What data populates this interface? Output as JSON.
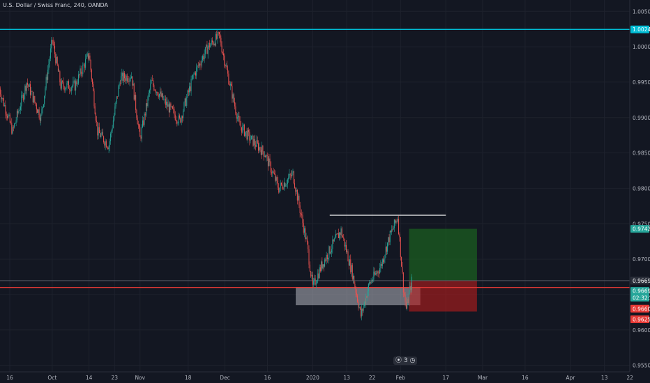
{
  "header": {
    "symbol_title": "U.S. Dollar / Swiss Franc, 240, OANDA"
  },
  "chart_data": {
    "type": "candlestick",
    "title": "U.S. Dollar / Swiss Franc, 240, OANDA",
    "ylim": [
      0.9525,
      1.0066
    ],
    "y_ticks": [
      "1.00500",
      "1.00000",
      "0.99500",
      "0.99000",
      "0.98500",
      "0.98000",
      "0.97500",
      "0.97000",
      "0.96500",
      "0.96000",
      "0.95500"
    ],
    "x_ticks": [
      "16",
      "Oct",
      "14",
      "23",
      "Nov",
      "18",
      "Dec",
      "16",
      "2020",
      "13",
      "22",
      "Feb",
      "17",
      "Mar",
      "16",
      "Apr",
      "13",
      "22"
    ],
    "price_path": [
      {
        "x": "Sep 12",
        "y": 0.9945
      },
      {
        "x": "Sep 17",
        "y": 0.988
      },
      {
        "x": "Sep 22",
        "y": 0.995
      },
      {
        "x": "Sep 27",
        "y": 0.99
      },
      {
        "x": "Oct 1",
        "y": 1.001
      },
      {
        "x": "Oct 4",
        "y": 0.9945
      },
      {
        "x": "Oct 9",
        "y": 0.9945
      },
      {
        "x": "Oct 14",
        "y": 0.999
      },
      {
        "x": "Oct 17",
        "y": 0.988
      },
      {
        "x": "Oct 21",
        "y": 0.986
      },
      {
        "x": "Oct 25",
        "y": 0.9955
      },
      {
        "x": "Oct 29",
        "y": 0.996
      },
      {
        "x": "Nov 1",
        "y": 0.987
      },
      {
        "x": "Nov 5",
        "y": 0.995
      },
      {
        "x": "Nov 10",
        "y": 0.992
      },
      {
        "x": "Nov 15",
        "y": 0.9895
      },
      {
        "x": "Nov 20",
        "y": 0.996
      },
      {
        "x": "Nov 25",
        "y": 1.0
      },
      {
        "x": "Nov 29",
        "y": 1.0015
      },
      {
        "x": "Dec 2",
        "y": 0.996
      },
      {
        "x": "Dec 6",
        "y": 0.989
      },
      {
        "x": "Dec 10",
        "y": 0.987
      },
      {
        "x": "Dec 15",
        "y": 0.985
      },
      {
        "x": "Dec 20",
        "y": 0.98
      },
      {
        "x": "Dec 25",
        "y": 0.982
      },
      {
        "x": "Dec 30",
        "y": 0.972
      },
      {
        "x": "Jan 1",
        "y": 0.966
      },
      {
        "x": "Jan 4",
        "y": 0.969
      },
      {
        "x": "Jan 8",
        "y": 0.972
      },
      {
        "x": "Jan 11",
        "y": 0.974
      },
      {
        "x": "Jan 15",
        "y": 0.968
      },
      {
        "x": "Jan 18",
        "y": 0.962
      },
      {
        "x": "Jan 21",
        "y": 0.9665
      },
      {
        "x": "Jan 25",
        "y": 0.969
      },
      {
        "x": "Jan 28",
        "y": 0.973
      },
      {
        "x": "Jan 31",
        "y": 0.976
      },
      {
        "x": "Feb 2",
        "y": 0.966
      },
      {
        "x": "Feb 3",
        "y": 0.963
      },
      {
        "x": "Feb 5",
        "y": 0.9669
      }
    ],
    "horizontal_lines": [
      {
        "price": 1.00245,
        "color": "#00bcd4"
      },
      {
        "price": 0.966,
        "color": "#e53935"
      },
      {
        "price": 0.96696,
        "color": "#5d606b"
      }
    ],
    "resistance_line": {
      "price": 0.9762,
      "from": "Jan 7",
      "to": "Feb 17",
      "color": "#ffffff"
    },
    "support_zone": {
      "from": "Dec 26",
      "to": "Feb 8",
      "top": 0.966,
      "bottom": 0.9635,
      "color": "#b2b5be"
    },
    "position": {
      "from": "Feb 4",
      "to": "Feb 28",
      "entry": 0.96696,
      "target": 0.97428,
      "stop": 0.96259,
      "profit_color": "#1b5e20",
      "loss_color": "#b71c1c"
    },
    "price_labels": [
      {
        "value": "1.00245",
        "price": 1.00245,
        "color": "#00bcd4"
      },
      {
        "value": "0.97428",
        "price": 0.97428,
        "color": "#26a69a"
      },
      {
        "value": "0.96696",
        "price": 0.96696,
        "color": "#2a2e39"
      },
      {
        "value": "0.96693",
        "price": 0.96552,
        "color": "#26a69a"
      },
      {
        "value": "02:32:28",
        "price": 0.96456,
        "color": "#26a69a"
      },
      {
        "value": "0.96603",
        "price": 0.963,
        "color": "#e53935"
      },
      {
        "value": "0.96259",
        "price": 0.9615,
        "color": "#e53935"
      }
    ],
    "colors": {
      "up": "#26a69a",
      "down": "#ef5350",
      "background": "#131722",
      "grid": "#1e222d"
    }
  },
  "footer_badge": "⦿ 3 ◷"
}
